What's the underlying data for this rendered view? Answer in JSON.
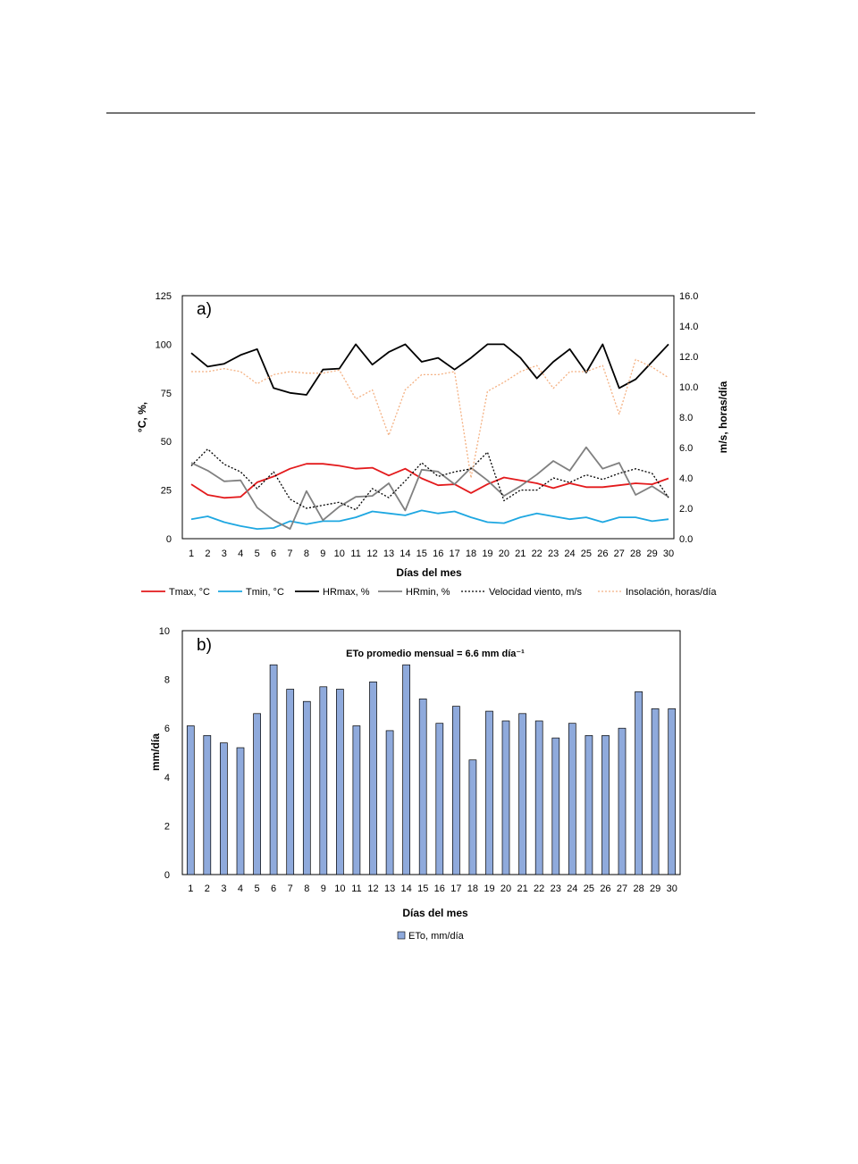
{
  "chart_data": [
    {
      "type": "line",
      "panel_label": "a)",
      "xlabel": "Días del mes",
      "ylabel": "°C, %,",
      "y2label": "m/s, horas/día",
      "x": [
        1,
        2,
        3,
        4,
        5,
        6,
        7,
        8,
        9,
        10,
        11,
        12,
        13,
        14,
        15,
        16,
        17,
        18,
        19,
        20,
        21,
        22,
        23,
        24,
        25,
        26,
        27,
        28,
        29,
        30
      ],
      "ylim": [
        0,
        125
      ],
      "yticks": [
        "0",
        "25",
        "50",
        "75",
        "100",
        "125"
      ],
      "y2lim": [
        0,
        16
      ],
      "y2ticks": [
        "0.0",
        "2.0",
        "4.0",
        "6.0",
        "8.0",
        "10.0",
        "12.0",
        "14.0",
        "16.0"
      ],
      "grid": false,
      "legend_position": "bottom",
      "series": [
        {
          "name": "Tmax, °C",
          "axis": "left",
          "color": "#e31a1c",
          "dash": "solid",
          "values": [
            28,
            22.5,
            21,
            21.5,
            29,
            32,
            36,
            38.5,
            38.5,
            37.5,
            36,
            36.5,
            32.5,
            36,
            31,
            27.5,
            28,
            23.5,
            28,
            31.5,
            30,
            28.5,
            26,
            28.5,
            26.5,
            26.5,
            27.5,
            28.5,
            28,
            31
          ]
        },
        {
          "name": "Tmin, °C",
          "axis": "left",
          "color": "#1ea7e1",
          "dash": "solid",
          "values": [
            10,
            11.5,
            8.5,
            6.5,
            5,
            5.5,
            9,
            7.5,
            9,
            9,
            11,
            14,
            13,
            12,
            14.5,
            13,
            14,
            11,
            8.5,
            8,
            11,
            13,
            11.5,
            10,
            11,
            8.5,
            11,
            11,
            9,
            10
          ]
        },
        {
          "name": "HRmax, %",
          "axis": "left",
          "color": "#000000",
          "dash": "solid",
          "values": [
            95.5,
            88.5,
            90,
            94.5,
            97.5,
            77.5,
            75,
            74,
            87,
            87.5,
            100,
            89.5,
            96,
            100,
            91,
            93,
            87,
            93,
            100,
            100,
            93,
            82.5,
            91,
            97.5,
            85.5,
            100,
            77.5,
            82,
            91,
            100
          ]
        },
        {
          "name": "HRmin, %",
          "axis": "left",
          "color": "#808080",
          "dash": "solid",
          "values": [
            39,
            35,
            29.5,
            30,
            16,
            9.5,
            5,
            24.5,
            9.5,
            16.5,
            21.5,
            22,
            28.5,
            14.5,
            35.5,
            34.5,
            28,
            36.5,
            30,
            22,
            27,
            33,
            40,
            35,
            47,
            36,
            39,
            22.5,
            27,
            21.5
          ]
        },
        {
          "name": "Velocidad viento, m/s",
          "axis": "right",
          "color": "#000000",
          "dash": "dotted",
          "values": [
            4.8,
            5.9,
            4.9,
            4.4,
            3.3,
            4.4,
            2.6,
            2,
            2.2,
            2.4,
            1.9,
            3.3,
            2.7,
            3.8,
            5,
            4.1,
            4.4,
            4.6,
            5.7,
            2.5,
            3.2,
            3.2,
            4,
            3.7,
            4.2,
            3.9,
            4.3,
            4.6,
            4.3,
            2.7
          ]
        },
        {
          "name": "Insolación, horas/día",
          "axis": "right",
          "color": "#f4b183",
          "dash": "dotted",
          "values": [
            11,
            11,
            11.2,
            11,
            10.2,
            10.8,
            11,
            10.9,
            10.9,
            11.1,
            9.2,
            9.8,
            6.8,
            9.8,
            10.8,
            10.8,
            11,
            4,
            9.7,
            10.3,
            11,
            11.4,
            9.9,
            11,
            11,
            11.4,
            8.2,
            11.8,
            11.3,
            10.6
          ]
        }
      ]
    },
    {
      "type": "bar",
      "panel_label": "b)",
      "annotation": "ETo promedio mensual = 6.6 mm día⁻¹",
      "xlabel": "Días del mes",
      "ylabel": "mm/día",
      "categories": [
        "1",
        "2",
        "3",
        "4",
        "5",
        "6",
        "7",
        "8",
        "9",
        "10",
        "11",
        "12",
        "13",
        "14",
        "15",
        "16",
        "17",
        "18",
        "19",
        "20",
        "21",
        "22",
        "23",
        "24",
        "25",
        "26",
        "27",
        "28",
        "29",
        "30"
      ],
      "ylim": [
        0,
        10
      ],
      "yticks": [
        "0",
        "2",
        "4",
        "6",
        "8",
        "10"
      ],
      "grid": false,
      "legend_position": "bottom",
      "series": [
        {
          "name": "ETo, mm/día",
          "color": "#8faadc",
          "values": [
            6.1,
            5.7,
            5.4,
            5.2,
            6.6,
            8.6,
            7.6,
            7.1,
            7.7,
            7.6,
            6.1,
            7.9,
            5.9,
            8.6,
            7.2,
            6.2,
            6.9,
            4.7,
            6.7,
            6.3,
            6.6,
            6.3,
            5.6,
            6.2,
            5.7,
            5.7,
            6.0,
            7.5,
            6.8,
            6.8
          ]
        }
      ]
    }
  ]
}
